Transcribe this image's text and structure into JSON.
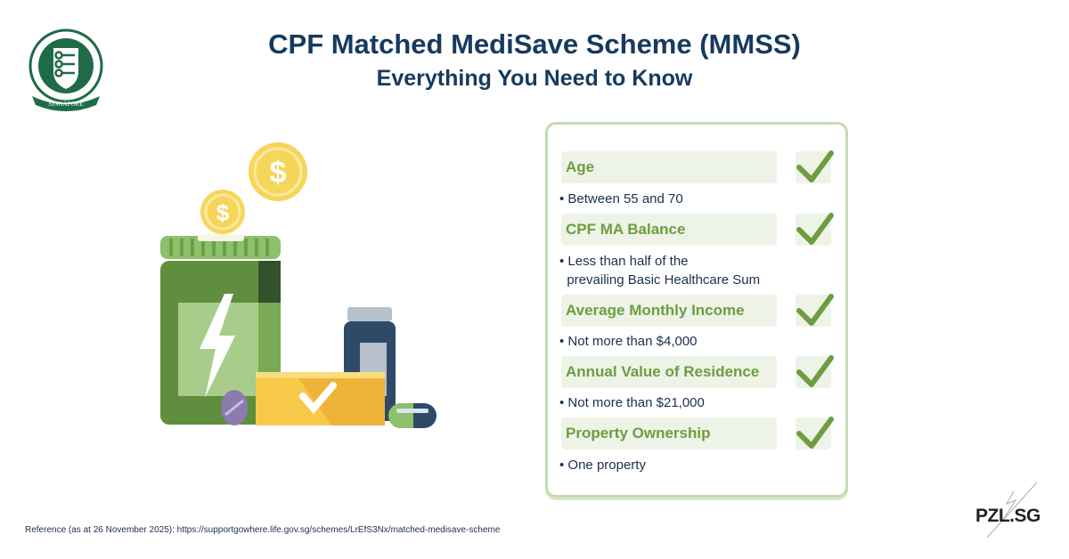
{
  "logo": {
    "text": "CENTRAL PROVIDENT FUND BOARD SINGAPORE",
    "color": "#1f6b48"
  },
  "header": {
    "title": "CPF Matched MediSave Scheme (MMSS)",
    "subtitle": "Everything You Need to Know"
  },
  "criteria": [
    {
      "label": "Age",
      "details": [
        "Between 55 and 70"
      ],
      "met": true
    },
    {
      "label": "CPF MA Balance",
      "details": [
        "Less than half of the",
        "prevailing Basic Healthcare Sum"
      ],
      "met": true
    },
    {
      "label": "Average Monthly Income",
      "details": [
        "Not more than $4,000"
      ],
      "met": true
    },
    {
      "label": "Annual Value of Residence",
      "details": [
        "Not more than $21,000"
      ],
      "met": true
    },
    {
      "label": "Property Ownership",
      "details": [
        "One property"
      ],
      "met": true
    }
  ],
  "footer": {
    "reference": "Reference (as at 26 November 2025): https://supportgowhere.life.gov.sg/schemes/LrEfS3Nx/matched-medisave-scheme",
    "brand": "PZL.SG"
  },
  "colors": {
    "title": "#173a5e",
    "accent": "#6d9d3f",
    "panel_border": "#c6dcb3",
    "coin": "#f6d65a"
  }
}
